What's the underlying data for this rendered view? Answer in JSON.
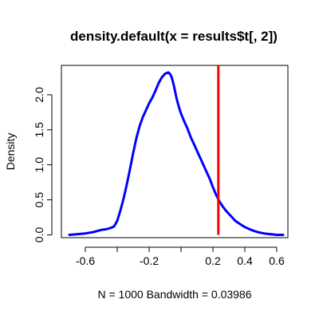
{
  "chart_data": {
    "type": "line",
    "title": "density.default(x = results$t[, 2])",
    "xlabel": "N = 1000   Bandwidth = 0.03986",
    "ylabel": "Density",
    "xlim": [
      -0.75,
      0.67
    ],
    "ylim": [
      -0.04,
      2.42
    ],
    "x_ticks": [
      -0.6,
      -0.4,
      -0.2,
      0,
      0.2,
      0.4,
      0.6
    ],
    "x_tick_labels": [
      "-0.6",
      "",
      "-0.2",
      "",
      "0.2",
      "0.4",
      "0.6"
    ],
    "y_ticks": [
      0.0,
      0.5,
      1.0,
      1.5,
      2.0
    ],
    "y_tick_labels": [
      "0.0",
      "0.5",
      "1.0",
      "1.5",
      "2.0"
    ],
    "grid": false,
    "series": [
      {
        "color": "#0000ff",
        "x": [
          -0.7,
          -0.65,
          -0.6,
          -0.55,
          -0.5,
          -0.47,
          -0.44,
          -0.42,
          -0.4,
          -0.38,
          -0.36,
          -0.34,
          -0.32,
          -0.3,
          -0.28,
          -0.26,
          -0.24,
          -0.22,
          -0.2,
          -0.18,
          -0.16,
          -0.14,
          -0.12,
          -0.1,
          -0.08,
          -0.07,
          -0.06,
          -0.05,
          -0.04,
          -0.03,
          -0.02,
          -0.01,
          0.0,
          0.02,
          0.04,
          0.06,
          0.08,
          0.1,
          0.12,
          0.14,
          0.16,
          0.18,
          0.2,
          0.22,
          0.24,
          0.26,
          0.28,
          0.3,
          0.32,
          0.34,
          0.36,
          0.38,
          0.4,
          0.44,
          0.48,
          0.52,
          0.56,
          0.6,
          0.64
        ],
        "y": [
          0.0,
          0.01,
          0.02,
          0.04,
          0.07,
          0.08,
          0.1,
          0.12,
          0.2,
          0.35,
          0.52,
          0.72,
          0.94,
          1.17,
          1.38,
          1.55,
          1.68,
          1.78,
          1.88,
          1.96,
          2.06,
          2.17,
          2.25,
          2.3,
          2.32,
          2.3,
          2.26,
          2.18,
          2.08,
          1.97,
          1.88,
          1.8,
          1.73,
          1.62,
          1.52,
          1.4,
          1.3,
          1.2,
          1.1,
          1.0,
          0.9,
          0.8,
          0.68,
          0.57,
          0.48,
          0.41,
          0.35,
          0.3,
          0.25,
          0.2,
          0.17,
          0.14,
          0.11,
          0.07,
          0.04,
          0.02,
          0.01,
          0.0,
          0.0
        ]
      }
    ],
    "vline": {
      "x": 0.234,
      "color": "#ff0000"
    }
  }
}
